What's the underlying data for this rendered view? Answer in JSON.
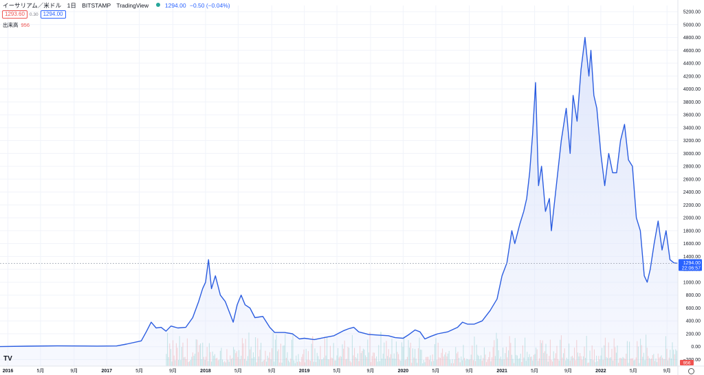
{
  "header": {
    "symbol": "イーサリアム／米ドル",
    "interval": "1日",
    "exchange": "BITSTAMP",
    "source": "TradingView",
    "price": "1294.00",
    "change": "−0.50 (−0.04%)"
  },
  "order": {
    "sell": "1293.60",
    "spread": "0.30",
    "buy": "1294.00"
  },
  "volume_label": {
    "label": "出来高",
    "value": "956"
  },
  "price_tag": {
    "price": "1294.00",
    "time": "22:06:57"
  },
  "volume_tag": "956",
  "logo_text": "TV",
  "colors": {
    "line": "#2a5ce0",
    "fill": "#dfe6fb",
    "up": "#26a69a",
    "down": "#ef5350",
    "accent": "#2962ff"
  },
  "icons": [
    "tradingview-logo-icon",
    "settings-icon",
    "live-dot-icon"
  ],
  "chart_data": {
    "type": "area",
    "title": "",
    "xlabel": "",
    "ylabel": "",
    "ylim": [
      -300,
      5300
    ],
    "y_ticks": [
      "5200.00",
      "5000.00",
      "4800.00",
      "4600.00",
      "4400.00",
      "4200.00",
      "4000.00",
      "3800.00",
      "3600.00",
      "3400.00",
      "3200.00",
      "3000.00",
      "2800.00",
      "2600.00",
      "2400.00",
      "2200.00",
      "2000.00",
      "1800.00",
      "1600.00",
      "1400.00",
      "1200.00",
      "1000.00",
      "800.00",
      "600.00",
      "400.00",
      "200.00",
      "0.00",
      "−200.00"
    ],
    "x_range": [
      2015.92,
      2022.78
    ],
    "x_ticks": [
      {
        "t": 2016.0,
        "label": "2016",
        "bold": true
      },
      {
        "t": 2016.33,
        "label": "5月",
        "bold": false
      },
      {
        "t": 2016.67,
        "label": "9月",
        "bold": false
      },
      {
        "t": 2017.0,
        "label": "2017",
        "bold": true
      },
      {
        "t": 2017.33,
        "label": "5月",
        "bold": false
      },
      {
        "t": 2017.67,
        "label": "9月",
        "bold": false
      },
      {
        "t": 2018.0,
        "label": "2018",
        "bold": true
      },
      {
        "t": 2018.33,
        "label": "5月",
        "bold": false
      },
      {
        "t": 2018.67,
        "label": "9月",
        "bold": false
      },
      {
        "t": 2019.0,
        "label": "2019",
        "bold": true
      },
      {
        "t": 2019.33,
        "label": "5月",
        "bold": false
      },
      {
        "t": 2019.67,
        "label": "9月",
        "bold": false
      },
      {
        "t": 2020.0,
        "label": "2020",
        "bold": true
      },
      {
        "t": 2020.33,
        "label": "5月",
        "bold": false
      },
      {
        "t": 2020.67,
        "label": "9月",
        "bold": false
      },
      {
        "t": 2021.0,
        "label": "2021",
        "bold": true
      },
      {
        "t": 2021.33,
        "label": "5月",
        "bold": false
      },
      {
        "t": 2021.67,
        "label": "9月",
        "bold": false
      },
      {
        "t": 2022.0,
        "label": "2022",
        "bold": true
      },
      {
        "t": 2022.33,
        "label": "5月",
        "bold": false
      },
      {
        "t": 2022.67,
        "label": "9月",
        "bold": false
      }
    ],
    "current_price": 1294,
    "volume_start": 2017.6,
    "series": [
      {
        "values": [
          [
            2015.92,
            1
          ],
          [
            2016.2,
            8
          ],
          [
            2016.5,
            12
          ],
          [
            2016.9,
            9
          ],
          [
            2017.1,
            11
          ],
          [
            2017.2,
            40
          ],
          [
            2017.35,
            90
          ],
          [
            2017.4,
            230
          ],
          [
            2017.45,
            380
          ],
          [
            2017.5,
            290
          ],
          [
            2017.55,
            300
          ],
          [
            2017.6,
            240
          ],
          [
            2017.65,
            320
          ],
          [
            2017.72,
            290
          ],
          [
            2017.8,
            300
          ],
          [
            2017.87,
            450
          ],
          [
            2017.93,
            700
          ],
          [
            2017.97,
            900
          ],
          [
            2018.0,
            1000
          ],
          [
            2018.03,
            1350
          ],
          [
            2018.06,
            900
          ],
          [
            2018.1,
            1100
          ],
          [
            2018.15,
            800
          ],
          [
            2018.2,
            700
          ],
          [
            2018.25,
            500
          ],
          [
            2018.28,
            380
          ],
          [
            2018.32,
            650
          ],
          [
            2018.36,
            800
          ],
          [
            2018.4,
            650
          ],
          [
            2018.45,
            600
          ],
          [
            2018.5,
            450
          ],
          [
            2018.58,
            470
          ],
          [
            2018.65,
            300
          ],
          [
            2018.7,
            220
          ],
          [
            2018.8,
            220
          ],
          [
            2018.88,
            200
          ],
          [
            2018.95,
            120
          ],
          [
            2019.0,
            130
          ],
          [
            2019.1,
            110
          ],
          [
            2019.2,
            140
          ],
          [
            2019.3,
            170
          ],
          [
            2019.4,
            250
          ],
          [
            2019.45,
            280
          ],
          [
            2019.5,
            300
          ],
          [
            2019.55,
            230
          ],
          [
            2019.65,
            190
          ],
          [
            2019.75,
            180
          ],
          [
            2019.85,
            170
          ],
          [
            2019.92,
            140
          ],
          [
            2020.0,
            130
          ],
          [
            2020.05,
            180
          ],
          [
            2020.12,
            260
          ],
          [
            2020.17,
            230
          ],
          [
            2020.22,
            120
          ],
          [
            2020.28,
            160
          ],
          [
            2020.35,
            200
          ],
          [
            2020.45,
            230
          ],
          [
            2020.55,
            300
          ],
          [
            2020.6,
            380
          ],
          [
            2020.65,
            350
          ],
          [
            2020.72,
            350
          ],
          [
            2020.8,
            400
          ],
          [
            2020.88,
            560
          ],
          [
            2020.95,
            740
          ],
          [
            2021.0,
            1100
          ],
          [
            2021.05,
            1300
          ],
          [
            2021.1,
            1800
          ],
          [
            2021.13,
            1600
          ],
          [
            2021.18,
            1900
          ],
          [
            2021.22,
            2100
          ],
          [
            2021.25,
            2300
          ],
          [
            2021.28,
            2700
          ],
          [
            2021.31,
            3300
          ],
          [
            2021.34,
            4100
          ],
          [
            2021.37,
            2500
          ],
          [
            2021.4,
            2800
          ],
          [
            2021.44,
            2100
          ],
          [
            2021.48,
            2300
          ],
          [
            2021.5,
            1800
          ],
          [
            2021.55,
            2500
          ],
          [
            2021.6,
            3200
          ],
          [
            2021.65,
            3700
          ],
          [
            2021.69,
            3000
          ],
          [
            2021.72,
            3900
          ],
          [
            2021.76,
            3500
          ],
          [
            2021.8,
            4300
          ],
          [
            2021.84,
            4800
          ],
          [
            2021.88,
            4200
          ],
          [
            2021.9,
            4600
          ],
          [
            2021.93,
            3900
          ],
          [
            2021.96,
            3700
          ],
          [
            2022.0,
            3000
          ],
          [
            2022.04,
            2500
          ],
          [
            2022.08,
            3000
          ],
          [
            2022.12,
            2700
          ],
          [
            2022.16,
            2700
          ],
          [
            2022.2,
            3200
          ],
          [
            2022.24,
            3450
          ],
          [
            2022.28,
            2900
          ],
          [
            2022.32,
            2800
          ],
          [
            2022.36,
            2000
          ],
          [
            2022.4,
            1800
          ],
          [
            2022.44,
            1100
          ],
          [
            2022.47,
            1000
          ],
          [
            2022.5,
            1200
          ],
          [
            2022.54,
            1600
          ],
          [
            2022.58,
            1950
          ],
          [
            2022.62,
            1500
          ],
          [
            2022.66,
            1800
          ],
          [
            2022.7,
            1350
          ],
          [
            2022.74,
            1300
          ],
          [
            2022.78,
            1294
          ]
        ]
      }
    ]
  }
}
